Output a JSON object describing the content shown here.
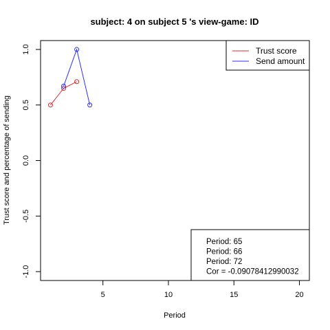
{
  "chart_data": {
    "type": "line",
    "title": "subject:  4  on subject  5 's view-game:  ID",
    "xlabel": "Period",
    "ylabel": "Trust score and percentage of sending",
    "xlim": [
      0.24,
      20.76
    ],
    "ylim": [
      -1.08,
      1.08
    ],
    "x_ticks": [
      {
        "value": 5,
        "label": "5"
      },
      {
        "value": 10,
        "label": "10"
      },
      {
        "value": 15,
        "label": "15"
      },
      {
        "value": 20,
        "label": "20"
      }
    ],
    "y_ticks": [
      {
        "value": 1.0,
        "label": "1.0"
      },
      {
        "value": 0.5,
        "label": "0.5"
      },
      {
        "value": 0.0,
        "label": "0.0"
      },
      {
        "value": -0.5,
        "label": "-0.5"
      },
      {
        "value": -1.0,
        "label": "-1.0"
      }
    ],
    "series": [
      {
        "name": "Trust score",
        "color": "#e8262b",
        "x": [
          1,
          2,
          3
        ],
        "y": [
          0.5,
          0.65,
          0.71
        ]
      },
      {
        "name": "Send amount",
        "color": "#2b2bff",
        "x": [
          2,
          3,
          4
        ],
        "y": [
          0.67,
          1.0,
          0.5
        ]
      }
    ],
    "legend": {
      "position": "top-right"
    },
    "info_box": {
      "position": "bottom-right",
      "lines": [
        "Period:  65",
        "Period:  66",
        "Period:  72",
        "Cor =  -0.09078412990032"
      ]
    },
    "grid": false
  }
}
